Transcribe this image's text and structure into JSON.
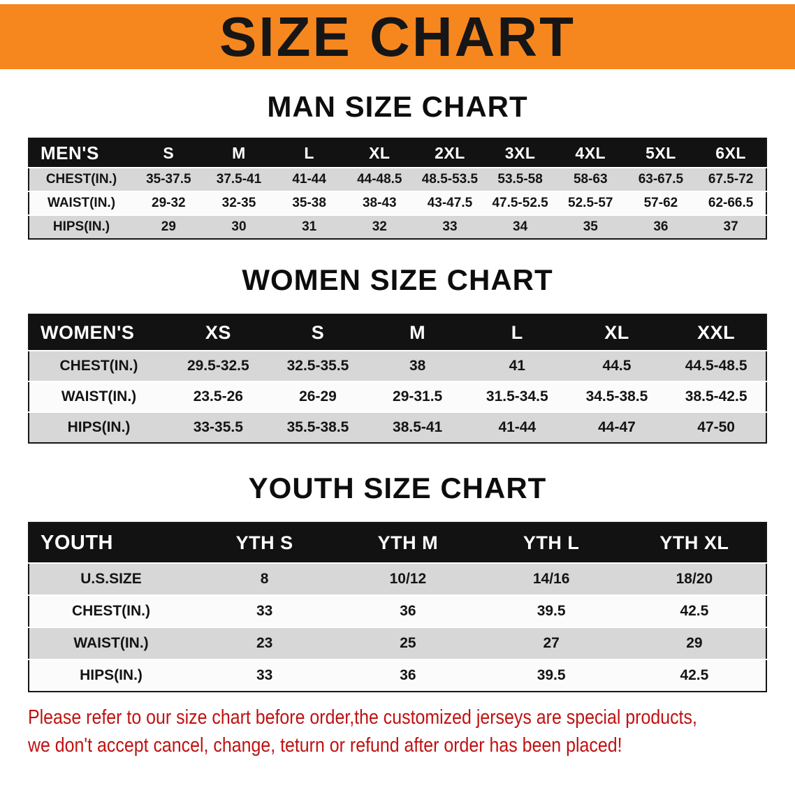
{
  "banner": {
    "title": "SIZE CHART"
  },
  "sections": [
    {
      "heading": "MAN SIZE CHART",
      "table": {
        "header": [
          "MEN'S",
          "S",
          "M",
          "L",
          "XL",
          "2XL",
          "3XL",
          "4XL",
          "5XL",
          "6XL"
        ],
        "rows": [
          [
            "CHEST(IN.)",
            "35-37.5",
            "37.5-41",
            "41-44",
            "44-48.5",
            "48.5-53.5",
            "53.5-58",
            "58-63",
            "63-67.5",
            "67.5-72"
          ],
          [
            "WAIST(IN.)",
            "29-32",
            "32-35",
            "35-38",
            "38-43",
            "43-47.5",
            "47.5-52.5",
            "52.5-57",
            "57-62",
            "62-66.5"
          ],
          [
            "HIPS(IN.)",
            "29",
            "30",
            "31",
            "32",
            "33",
            "34",
            "35",
            "36",
            "37"
          ]
        ]
      }
    },
    {
      "heading": "WOMEN SIZE CHART",
      "table": {
        "header": [
          "WOMEN'S",
          "XS",
          "S",
          "M",
          "L",
          "XL",
          "XXL"
        ],
        "rows": [
          [
            "CHEST(IN.)",
            "29.5-32.5",
            "32.5-35.5",
            "38",
            "41",
            "44.5",
            "44.5-48.5"
          ],
          [
            "WAIST(IN.)",
            "23.5-26",
            "26-29",
            "29-31.5",
            "31.5-34.5",
            "34.5-38.5",
            "38.5-42.5"
          ],
          [
            "HIPS(IN.)",
            "33-35.5",
            "35.5-38.5",
            "38.5-41",
            "41-44",
            "44-47",
            "47-50"
          ]
        ]
      }
    },
    {
      "heading": "YOUTH SIZE CHART",
      "table": {
        "header": [
          "YOUTH",
          "YTH S",
          "YTH M",
          "YTH L",
          "YTH XL"
        ],
        "rows": [
          [
            "U.S.SIZE",
            "8",
            "10/12",
            "14/16",
            "18/20"
          ],
          [
            "CHEST(IN.)",
            "33",
            "36",
            "39.5",
            "42.5"
          ],
          [
            "WAIST(IN.)",
            "23",
            "25",
            "27",
            "29"
          ],
          [
            "HIPS(IN.)",
            "33",
            "36",
            "39.5",
            "42.5"
          ]
        ]
      }
    }
  ],
  "disclaimer": {
    "line1": "Please refer to our size chart before order,the customized jerseys are special products,",
    "line2": "we don't accept cancel, change, teturn or refund after order has been placed!"
  },
  "colors": {
    "banner_bg": "#f6871f",
    "table_header_bg": "#121212",
    "row_shade": "#d7d7d7",
    "row_light": "#fbfbfb",
    "disclaimer_text": "#c01111"
  }
}
